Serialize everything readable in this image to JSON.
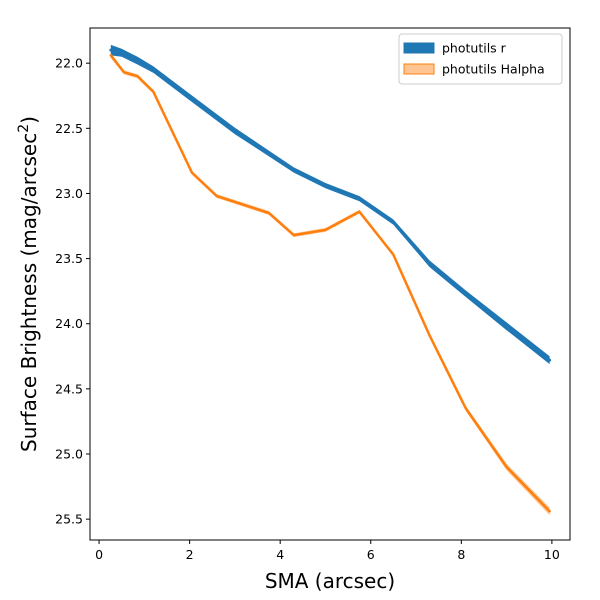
{
  "chart_data": {
    "type": "line",
    "title": "",
    "xlabel": "SMA (arcsec)",
    "ylabel_main": "Surface Brightness (mag/arcsec",
    "ylabel_sup": "2",
    "ylabel_close": ")",
    "xlim": [
      -0.2,
      10.4
    ],
    "ylim": [
      25.66,
      21.73
    ],
    "y_inverted": true,
    "xticks": [
      0,
      2,
      4,
      6,
      8,
      10
    ],
    "yticks": [
      22.0,
      22.5,
      23.0,
      23.5,
      24.0,
      24.5,
      25.0,
      25.5
    ],
    "xtick_labels": [
      "0",
      "2",
      "4",
      "6",
      "8",
      "10"
    ],
    "ytick_labels": [
      "22.0",
      "22.5",
      "23.0",
      "23.5",
      "24.0",
      "24.5",
      "25.0",
      "25.5"
    ],
    "grid": false,
    "legend_position": "top-right",
    "series": [
      {
        "name": "photutils r",
        "color": "#1f77b4",
        "fill_alpha": 1.0,
        "line_width": 3,
        "x": [
          0.26,
          0.5,
          0.85,
          1.2,
          2.0,
          3.0,
          4.3,
          5.0,
          5.75,
          6.5,
          7.3,
          8.1,
          9.0,
          9.95
        ],
        "y": [
          21.9,
          21.92,
          21.98,
          22.05,
          22.26,
          22.52,
          22.82,
          22.94,
          23.04,
          23.22,
          23.54,
          23.77,
          24.02,
          24.28
        ],
        "band_halfwidth": [
          0.04,
          0.03,
          0.03,
          0.025,
          0.025,
          0.025,
          0.02,
          0.02,
          0.02,
          0.02,
          0.025,
          0.025,
          0.03,
          0.03
        ]
      },
      {
        "name": "photutils Halpha",
        "color": "#ff7f0e",
        "fill_alpha": 0.45,
        "line_width": 2.5,
        "x": [
          0.26,
          0.55,
          0.85,
          1.2,
          2.05,
          2.6,
          3.75,
          4.3,
          5.0,
          5.75,
          6.5,
          7.3,
          8.1,
          9.0,
          9.95
        ],
        "y": [
          21.94,
          22.07,
          22.1,
          22.22,
          22.84,
          23.02,
          23.15,
          23.32,
          23.28,
          23.14,
          23.47,
          24.09,
          24.65,
          25.1,
          25.44
        ],
        "band_halfwidth": [
          0.02,
          0.015,
          0.015,
          0.015,
          0.015,
          0.015,
          0.015,
          0.015,
          0.015,
          0.015,
          0.015,
          0.02,
          0.02,
          0.025,
          0.03
        ]
      }
    ]
  }
}
